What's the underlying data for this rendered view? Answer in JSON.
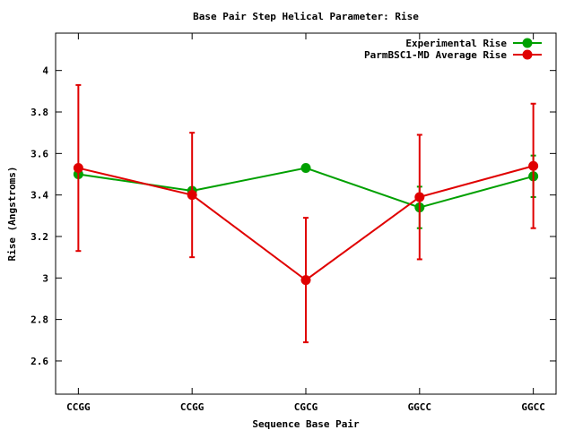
{
  "chart_data": {
    "type": "line",
    "title": "Base Pair Step Helical Parameter: Rise",
    "xlabel": "Sequence Base Pair",
    "ylabel": "Rise (Angstroms)",
    "categories": [
      "CCGG",
      "CCGG",
      "CGCG",
      "GGCC",
      "GGCC"
    ],
    "ylim": [
      2.44,
      4.18
    ],
    "yticks": [
      2.6,
      2.8,
      3,
      3.2,
      3.4,
      3.6,
      3.8,
      4
    ],
    "ytick_labels": [
      "2.6",
      "2.8",
      "3",
      "3.2",
      "3.4",
      "3.6",
      "3.8",
      "4"
    ],
    "grid": false,
    "legend_position": "top-right",
    "series": [
      {
        "name": "Experimental Rise",
        "color": "#00a000",
        "values": [
          3.5,
          3.42,
          3.53,
          3.34,
          3.49
        ],
        "errors": [
          0,
          0,
          0,
          0.1,
          0.1
        ]
      },
      {
        "name": "ParmBSC1-MD Average Rise",
        "color": "#e00000",
        "values": [
          3.53,
          3.4,
          2.99,
          3.39,
          3.54
        ],
        "errors": [
          0.4,
          0.3,
          0.3,
          0.3,
          0.3
        ]
      }
    ]
  }
}
